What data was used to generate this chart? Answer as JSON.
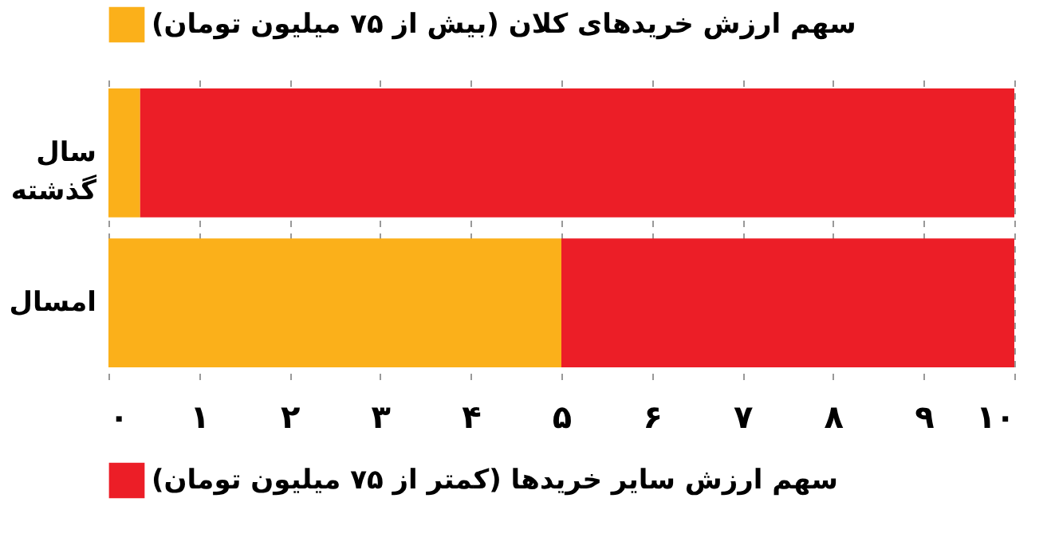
{
  "chart_data": {
    "type": "bar",
    "orientation": "horizontal",
    "stacked": true,
    "categories": [
      "سال گذشته",
      "امسال"
    ],
    "series": [
      {
        "name": "سهم ارزش خریدهای کلان (بیش از ۷۵ میلیون تومان)",
        "color": "#fbb01a",
        "values": [
          0.35,
          5
        ]
      },
      {
        "name": "سهم ارزش سایر خریدها (کمتر از ۷۵ میلیون تومان)",
        "color": "#ec1e27",
        "values": [
          9.65,
          5
        ]
      }
    ],
    "xlim": [
      0,
      10
    ],
    "xticks": [
      {
        "value": 0,
        "label": "۰"
      },
      {
        "value": 1,
        "label": "۱"
      },
      {
        "value": 2,
        "label": "۲"
      },
      {
        "value": 3,
        "label": "۳"
      },
      {
        "value": 4,
        "label": "۴"
      },
      {
        "value": 5,
        "label": "۵"
      },
      {
        "value": 6,
        "label": "۶"
      },
      {
        "value": 7,
        "label": "۷"
      },
      {
        "value": 8,
        "label": "۸"
      },
      {
        "value": 9,
        "label": "۹"
      },
      {
        "value": 10,
        "label": "۱۰"
      }
    ],
    "grid": "x",
    "legend": "left"
  }
}
